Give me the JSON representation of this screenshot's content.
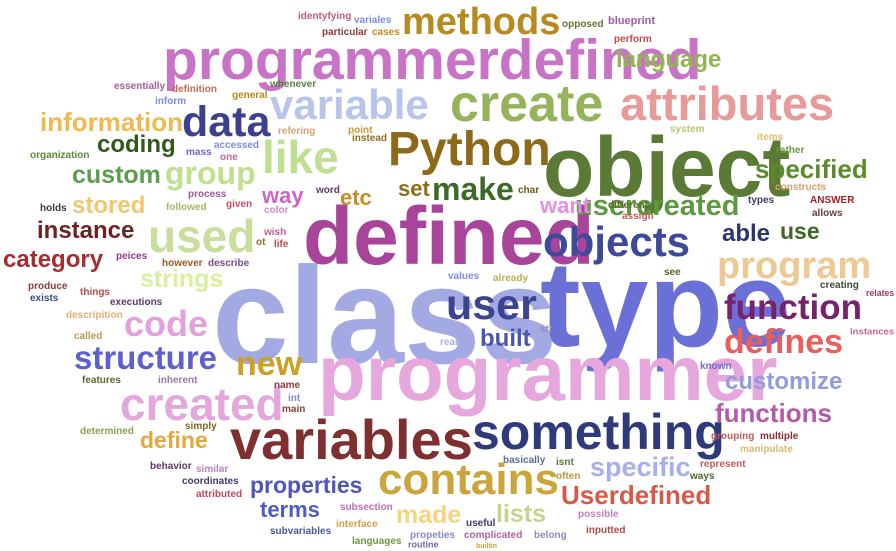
{
  "words": [
    {
      "text": "class",
      "color": "#a3a9e2"
    },
    {
      "text": "type",
      "color": "#6b70d6"
    },
    {
      "text": "programmer",
      "color": "#e6a7dd"
    },
    {
      "text": "defined",
      "color": "#a8459a"
    },
    {
      "text": "object",
      "color": "#5a7a36"
    },
    {
      "text": "programmerdefined",
      "color": "#c873c6"
    },
    {
      "text": "variables",
      "color": "#7e3030"
    },
    {
      "text": "something",
      "color": "#2f3a7a"
    },
    {
      "text": "create",
      "color": "#94b35a"
    },
    {
      "text": "attributes",
      "color": "#e69a9a"
    },
    {
      "text": "Python",
      "color": "#8c6a1a"
    },
    {
      "text": "variable",
      "color": "#b8c4ea"
    },
    {
      "text": "contains",
      "color": "#c9a53c"
    },
    {
      "text": "created",
      "color": "#e3a7dc"
    },
    {
      "text": "objects",
      "color": "#3d4a9a"
    },
    {
      "text": "methods",
      "color": "#b88a1e"
    },
    {
      "text": "data",
      "color": "#3d3f8f"
    },
    {
      "text": "like",
      "color": "#bfe093"
    },
    {
      "text": "used",
      "color": "#c9dd9c"
    },
    {
      "text": "user",
      "color": "#3b4490"
    },
    {
      "text": "program",
      "color": "#edc994"
    },
    {
      "text": "function",
      "color": "#79216b"
    },
    {
      "text": "defines",
      "color": "#e65e5e"
    },
    {
      "text": "code",
      "color": "#e3a1dc"
    },
    {
      "text": "structure",
      "color": "#5d61cf"
    },
    {
      "text": "new",
      "color": "#cca025"
    },
    {
      "text": "group",
      "color": "#bfe08c"
    },
    {
      "text": "make",
      "color": "#3c6a26"
    },
    {
      "text": "usercreated",
      "color": "#5c9a3d"
    },
    {
      "text": "specified",
      "color": "#5c8a2d"
    },
    {
      "text": "Userdefined",
      "color": "#d65a4a"
    },
    {
      "text": "specific",
      "color": "#a7aee8"
    },
    {
      "text": "functions",
      "color": "#b45aa6"
    },
    {
      "text": "customize",
      "color": "#8f9ddb"
    },
    {
      "text": "language",
      "color": "#93b54f"
    },
    {
      "text": "information",
      "color": "#f0b84d"
    },
    {
      "text": "coding",
      "color": "#2f5a1c"
    },
    {
      "text": "custom",
      "color": "#5c9e4d"
    },
    {
      "text": "stored",
      "color": "#f0c76f"
    },
    {
      "text": "instance",
      "color": "#6e2323"
    },
    {
      "text": "category",
      "color": "#a62d2d"
    },
    {
      "text": "strings",
      "color": "#dbef9f"
    },
    {
      "text": "properties",
      "color": "#4f56b8"
    },
    {
      "text": "terms",
      "color": "#505ac7"
    },
    {
      "text": "made",
      "color": "#f7d27f"
    },
    {
      "text": "lists",
      "color": "#c5d38c"
    },
    {
      "text": "define",
      "color": "#e6a640"
    },
    {
      "text": "built",
      "color": "#4a55b0"
    },
    {
      "text": "want",
      "color": "#e48fe6"
    },
    {
      "text": "way",
      "color": "#cc66c7"
    },
    {
      "text": "able",
      "color": "#2d3470"
    },
    {
      "text": "use",
      "color": "#3c6a26"
    },
    {
      "text": "set",
      "color": "#8f6e1a"
    },
    {
      "text": "etc",
      "color": "#c68f22"
    },
    {
      "text": "identyfying",
      "color": "#c35a7a"
    },
    {
      "text": "variales",
      "color": "#7c8cdf"
    },
    {
      "text": "particular",
      "color": "#8e3a3a"
    },
    {
      "text": "cases",
      "color": "#c78a1e"
    },
    {
      "text": "opposed",
      "color": "#6b7030"
    },
    {
      "text": "blueprint",
      "color": "#a05aaa"
    },
    {
      "text": "perform",
      "color": "#c44a4a"
    },
    {
      "text": "definition",
      "color": "#c06a55"
    },
    {
      "text": "essentially",
      "color": "#a85aa0"
    },
    {
      "text": "whenever",
      "color": "#5a8040"
    },
    {
      "text": "inform",
      "color": "#7c8cdf"
    },
    {
      "text": "general",
      "color": "#b8861e"
    },
    {
      "text": "refering",
      "color": "#d8a06e"
    },
    {
      "text": "point",
      "color": "#cc9a3a"
    },
    {
      "text": "instead",
      "color": "#8e7020"
    },
    {
      "text": "mass",
      "color": "#6a6ad0"
    },
    {
      "text": "accessed",
      "color": "#7c8cdf"
    },
    {
      "text": "one",
      "color": "#c06a9a"
    },
    {
      "text": "organization",
      "color": "#5a8a3a"
    },
    {
      "text": "system",
      "color": "#b5c778"
    },
    {
      "text": "items",
      "color": "#d8c070"
    },
    {
      "text": "rather",
      "color": "#6a9a3a"
    },
    {
      "text": "constructs",
      "color": "#d8a06e"
    },
    {
      "text": "ANSWER",
      "color": "#a82020"
    },
    {
      "text": "allows",
      "color": "#6e3a3a"
    },
    {
      "text": "types",
      "color": "#3d3a6a"
    },
    {
      "text": "word",
      "color": "#5a3a6a"
    },
    {
      "text": "char",
      "color": "#6a5a20"
    },
    {
      "text": "different",
      "color": "#5a6a2a"
    },
    {
      "text": "assign",
      "color": "#c05a5a"
    },
    {
      "text": "process",
      "color": "#9a5aa0"
    },
    {
      "text": "followed",
      "color": "#a8b568"
    },
    {
      "text": "given",
      "color": "#c8506a"
    },
    {
      "text": "color",
      "color": "#d38ad0"
    },
    {
      "text": "holds",
      "color": "#3d3a3a"
    },
    {
      "text": "wish",
      "color": "#cc5a8a"
    },
    {
      "text": "life",
      "color": "#b84a4a"
    },
    {
      "text": "ot",
      "color": "#8e7020"
    },
    {
      "text": "peices",
      "color": "#8e3a8a"
    },
    {
      "text": "however",
      "color": "#9a5a20"
    },
    {
      "text": "describe",
      "color": "#7a4a8a"
    },
    {
      "text": "produce",
      "color": "#8a3a3a"
    },
    {
      "text": "things",
      "color": "#b84a4a"
    },
    {
      "text": "exists",
      "color": "#3d4a8a"
    },
    {
      "text": "executions",
      "color": "#5a3a6a"
    },
    {
      "text": "descripition",
      "color": "#e0b070"
    },
    {
      "text": "values",
      "color": "#7c8cdf"
    },
    {
      "text": "already",
      "color": "#b5b050"
    },
    {
      "text": "see",
      "color": "#4a6a2a"
    },
    {
      "text": "creating",
      "color": "#3d4a3a"
    },
    {
      "text": "relates",
      "color": "#a03a6a"
    },
    {
      "text": "instances",
      "color": "#c06a9a"
    },
    {
      "text": "str",
      "color": "#8a8ac0"
    },
    {
      "text": "real",
      "color": "#a8b5d0"
    },
    {
      "text": "called",
      "color": "#b89a50"
    },
    {
      "text": "features",
      "color": "#5a6a2a"
    },
    {
      "text": "inherent",
      "color": "#a07aa0"
    },
    {
      "text": "name",
      "color": "#8e3a3a"
    },
    {
      "text": "int",
      "color": "#7c8cdf"
    },
    {
      "text": "main",
      "color": "#8e3a3a"
    },
    {
      "text": "known",
      "color": "#6e6ad0"
    },
    {
      "text": "determined",
      "color": "#8aa050"
    },
    {
      "text": "simply",
      "color": "#7a6a20"
    },
    {
      "text": "grouping",
      "color": "#c05a5a"
    },
    {
      "text": "multiple",
      "color": "#8e2a2a"
    },
    {
      "text": "manipulate",
      "color": "#d0c070"
    },
    {
      "text": "behavior",
      "color": "#5a3a5a"
    },
    {
      "text": "similar",
      "color": "#c080c0"
    },
    {
      "text": "coordinates",
      "color": "#3d3a6a"
    },
    {
      "text": "attributed",
      "color": "#c04a5a"
    },
    {
      "text": "basically",
      "color": "#5a6a9a"
    },
    {
      "text": "isnt",
      "color": "#5a7a3a"
    },
    {
      "text": "often",
      "color": "#b89a40"
    },
    {
      "text": "represent",
      "color": "#c05a5a"
    },
    {
      "text": "ways",
      "color": "#4a6a2a"
    },
    {
      "text": "subsection",
      "color": "#c070b0"
    },
    {
      "text": "interface",
      "color": "#d0a050"
    },
    {
      "text": "subvariables",
      "color": "#4a5a9a"
    },
    {
      "text": "languages",
      "color": "#6a9a3a"
    },
    {
      "text": "propeties",
      "color": "#8a8ac0"
    },
    {
      "text": "routine",
      "color": "#6a6aa0"
    },
    {
      "text": "useful",
      "color": "#3d3a6a"
    },
    {
      "text": "complicated",
      "color": "#b060a0"
    },
    {
      "text": "builtin",
      "color": "#d0a040"
    },
    {
      "text": "belong",
      "color": "#8a8ac0"
    },
    {
      "text": "possible",
      "color": "#c080c0"
    },
    {
      "text": "inputted",
      "color": "#b04a4a"
    }
  ]
}
